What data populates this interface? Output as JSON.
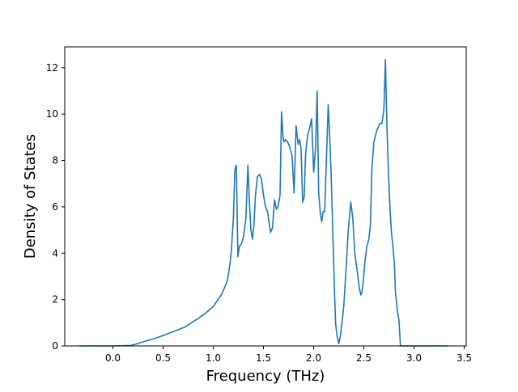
{
  "chart_data": {
    "type": "line",
    "title": "",
    "xlabel": "Frequency (THz)",
    "ylabel": "Density of States",
    "xlim": [
      -0.48,
      3.52
    ],
    "ylim": [
      0,
      12.9
    ],
    "xticks": [
      0.0,
      0.5,
      1.0,
      1.5,
      2.0,
      2.5,
      3.0,
      3.5
    ],
    "xtick_labels": [
      "0.0",
      "0.5",
      "1.0",
      "1.5",
      "2.0",
      "2.5",
      "3.0",
      "3.5"
    ],
    "yticks": [
      0,
      2,
      4,
      6,
      8,
      10,
      12
    ],
    "ytick_labels": [
      "0",
      "2",
      "4",
      "6",
      "8",
      "10",
      "12"
    ],
    "grid": false,
    "series": [
      {
        "color": "#1f77b4",
        "x": [
          -0.33,
          0.0,
          0.18,
          0.23,
          0.32,
          0.4,
          0.5,
          0.62,
          0.72,
          0.82,
          0.92,
          1.0,
          1.08,
          1.11,
          1.14,
          1.165,
          1.18,
          1.2,
          1.215,
          1.23,
          1.245,
          1.26,
          1.28,
          1.3,
          1.325,
          1.345,
          1.36,
          1.375,
          1.39,
          1.405,
          1.42,
          1.44,
          1.46,
          1.48,
          1.5,
          1.52,
          1.54,
          1.57,
          1.59,
          1.61,
          1.63,
          1.645,
          1.665,
          1.68,
          1.695,
          1.705,
          1.72,
          1.74,
          1.76,
          1.785,
          1.805,
          1.825,
          1.845,
          1.86,
          1.875,
          1.89,
          1.905,
          1.92,
          1.94,
          1.96,
          1.98,
          2.0,
          2.02,
          2.035,
          2.05,
          2.065,
          2.08,
          2.095,
          2.11,
          2.13,
          2.145,
          2.16,
          2.175,
          2.195,
          2.21,
          2.22,
          2.235,
          2.25,
          2.265,
          2.28,
          2.3,
          2.32,
          2.345,
          2.37,
          2.39,
          2.41,
          2.435,
          2.455,
          2.47,
          2.48,
          2.495,
          2.51,
          2.53,
          2.55,
          2.565,
          2.58,
          2.6,
          2.63,
          2.66,
          2.68,
          2.7,
          2.715,
          2.73,
          2.745,
          2.76,
          2.775,
          2.79,
          2.805,
          2.815,
          2.825,
          2.835,
          2.85,
          2.865,
          2.88,
          2.9,
          2.92,
          2.95,
          2.975,
          2.995,
          3.01,
          3.02,
          3.1,
          3.33
        ],
        "y": [
          0.0,
          0.0,
          0.02,
          0.08,
          0.2,
          0.3,
          0.45,
          0.65,
          0.82,
          1.1,
          1.4,
          1.7,
          2.2,
          2.5,
          2.8,
          3.5,
          4.1,
          5.5,
          7.6,
          7.8,
          3.85,
          4.3,
          4.4,
          4.7,
          5.5,
          7.8,
          6.2,
          5.0,
          4.6,
          5.2,
          6.5,
          7.3,
          7.4,
          7.2,
          6.5,
          6.0,
          5.8,
          4.9,
          5.1,
          6.3,
          5.9,
          6.0,
          6.5,
          10.1,
          9.0,
          8.8,
          8.9,
          8.8,
          8.6,
          8.2,
          6.6,
          9.5,
          8.7,
          8.9,
          8.5,
          6.2,
          6.4,
          8.3,
          9.1,
          9.4,
          9.8,
          7.5,
          8.6,
          11.0,
          6.6,
          5.8,
          5.35,
          5.8,
          5.8,
          8.4,
          10.4,
          9.0,
          7.3,
          4.3,
          2.0,
          0.9,
          0.4,
          0.1,
          0.4,
          0.9,
          1.7,
          3.1,
          5.0,
          6.2,
          5.5,
          4.0,
          3.2,
          2.5,
          2.2,
          2.3,
          2.8,
          3.6,
          4.3,
          4.6,
          5.2,
          7.6,
          8.8,
          9.3,
          9.6,
          9.6,
          10.2,
          12.35,
          9.5,
          7.5,
          6.0,
          4.9,
          4.3,
          3.5,
          2.3,
          1.9,
          1.5,
          1.1,
          0.0,
          0.0,
          0.0,
          0.0,
          0.0,
          0.0,
          0.0,
          0.0,
          0.0,
          0.0,
          0.0
        ]
      }
    ]
  }
}
